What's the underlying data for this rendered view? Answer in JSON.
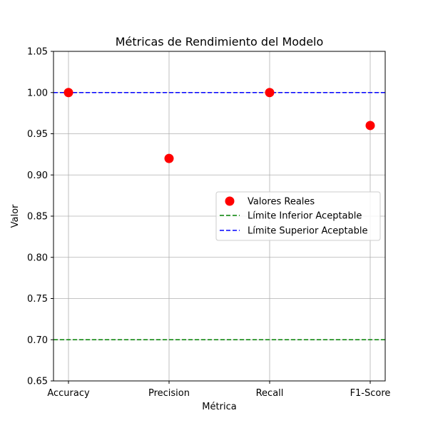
{
  "chart_data": {
    "type": "scatter",
    "title": "Métricas de Rendimiento del Modelo",
    "xlabel": "Métrica",
    "ylabel": "Valor",
    "categories": [
      "Accuracy",
      "Precision",
      "Recall",
      "F1-Score"
    ],
    "series": [
      {
        "name": "Valores Reales",
        "values": [
          1.0,
          0.92,
          1.0,
          0.96
        ],
        "color": "#ff0000",
        "marker": "circle"
      }
    ],
    "reference_lines": [
      {
        "name": "Límite Inferior Aceptable",
        "y": 0.7,
        "color": "#008000",
        "style": "dashed"
      },
      {
        "name": "Límite Superior Aceptable",
        "y": 1.0,
        "color": "#0000ff",
        "style": "dashed"
      }
    ],
    "ylim": [
      0.65,
      1.05
    ],
    "yticks": [
      "0.65",
      "0.70",
      "0.75",
      "0.80",
      "0.85",
      "0.90",
      "0.95",
      "1.00",
      "1.05"
    ],
    "grid": true,
    "legend_position": "center-right"
  }
}
